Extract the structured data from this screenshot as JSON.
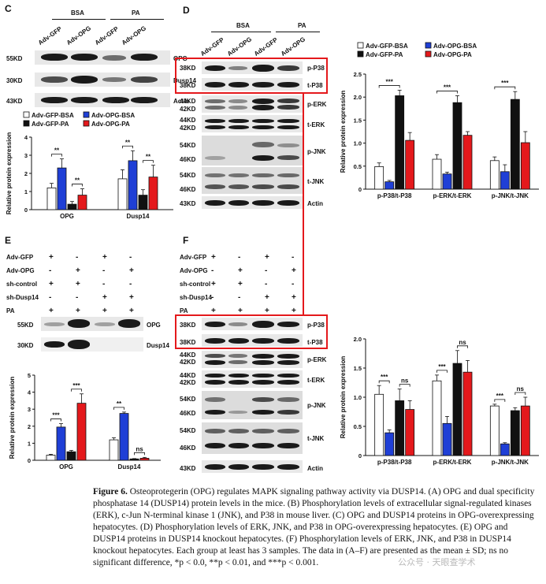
{
  "panels": {
    "C": {
      "label": "C",
      "groups": [
        "BSA",
        "PA"
      ],
      "lanes": [
        "Adv-GFP",
        "Adv-OPG",
        "Adv-GFP",
        "Adv-OPG"
      ],
      "blots": [
        {
          "kd": "55KD",
          "protein": "OPG"
        },
        {
          "kd": "30KD",
          "protein": "Dusp14"
        },
        {
          "kd": "43KD",
          "protein": "Actin"
        }
      ]
    },
    "D": {
      "label": "D",
      "groups": [
        "BSA",
        "PA"
      ],
      "lanes": [
        "Adv-GFP",
        "Adv-OPG",
        "Adv-GFP",
        "Adv-OPG"
      ],
      "blots": [
        {
          "kd": "38KD",
          "protein": "p-P38"
        },
        {
          "kd": "38KD",
          "protein": "t-P38"
        },
        {
          "kd": "44KD",
          "kd2": "42KD",
          "protein": "p-ERK"
        },
        {
          "kd": "44KD",
          "kd2": "42KD",
          "protein": "t-ERK"
        },
        {
          "kd": "54KD",
          "kd2": "46KD",
          "protein": "p-JNK"
        },
        {
          "kd": "54KD",
          "kd2": "46KD",
          "protein": "t-JNK"
        },
        {
          "kd": "43KD",
          "protein": "Actin"
        }
      ]
    },
    "E": {
      "label": "E",
      "rows": [
        {
          "name": "Adv-GFP",
          "signs": [
            "+",
            "-",
            "+",
            "-"
          ]
        },
        {
          "name": "Adv-OPG",
          "signs": [
            "-",
            "+",
            "-",
            "+"
          ]
        },
        {
          "name": "sh-control",
          "signs": [
            "+",
            "+",
            "-",
            "-"
          ]
        },
        {
          "name": "sh-Dusp14",
          "signs": [
            "-",
            "-",
            "+",
            "+"
          ]
        },
        {
          "name": "PA",
          "signs": [
            "+",
            "+",
            "+",
            "+"
          ]
        }
      ],
      "blots": [
        {
          "kd": "55KD",
          "protein": "OPG"
        },
        {
          "kd": "30KD",
          "protein": "Dusp14"
        }
      ]
    },
    "F": {
      "label": "F",
      "rows": [
        {
          "name": "Adv-GFP",
          "signs": [
            "+",
            "-",
            "+",
            "-"
          ]
        },
        {
          "name": "Adv-OPG",
          "signs": [
            "-",
            "+",
            "-",
            "+"
          ]
        },
        {
          "name": "sh-control",
          "signs": [
            "+",
            "+",
            "-",
            "-"
          ]
        },
        {
          "name": "sh-Dusp14",
          "signs": [
            "-",
            "-",
            "+",
            "+"
          ]
        },
        {
          "name": "PA",
          "signs": [
            "+",
            "+",
            "+",
            "+"
          ]
        }
      ],
      "blots": [
        {
          "kd": "38KD",
          "protein": "p-P38"
        },
        {
          "kd": "38KD",
          "protein": "t-P38"
        },
        {
          "kd": "44KD",
          "kd2": "42KD",
          "protein": "p-ERK"
        },
        {
          "kd": "44KD",
          "kd2": "42KD",
          "protein": "t-ERK"
        },
        {
          "kd": "54KD",
          "kd2": "46KD",
          "protein": "p-JNK"
        },
        {
          "kd": "54KD",
          "kd2": "46KD",
          "protein": "t-JNK"
        },
        {
          "kd": "43KD",
          "protein": "Actin"
        }
      ]
    }
  },
  "colors": {
    "gfp_bsa": "#ffffff",
    "opg_bsa": "#1f3fd6",
    "gfp_pa": "#111111",
    "opg_pa": "#e4191c",
    "highlight": "#e4191c"
  },
  "chart_data": [
    {
      "panel": "C",
      "type": "bar",
      "ylabel": "Relative protein expression",
      "ylim": [
        0,
        4
      ],
      "yticks": [
        0,
        1,
        2,
        3,
        4
      ],
      "categories": [
        "OPG",
        "Dusp14"
      ],
      "legend": [
        "Adv-GFP-BSA",
        "Adv-OPG-BSA",
        "Adv-GFP-PA",
        "Adv-OPG-PA"
      ],
      "series": [
        {
          "name": "Adv-GFP-BSA",
          "values": [
            1.2,
            1.7
          ],
          "err": [
            0.25,
            0.5
          ]
        },
        {
          "name": "Adv-OPG-BSA",
          "values": [
            2.3,
            2.7
          ],
          "err": [
            0.5,
            0.55
          ]
        },
        {
          "name": "Adv-GFP-PA",
          "values": [
            0.3,
            0.8
          ],
          "err": [
            0.15,
            0.3
          ]
        },
        {
          "name": "Adv-OPG-PA",
          "values": [
            0.8,
            1.8
          ],
          "err": [
            0.35,
            0.65
          ]
        }
      ],
      "annotations": [
        {
          "text": "**"
        },
        {
          "text": "**"
        },
        {
          "text": "**"
        },
        {
          "text": "**"
        }
      ]
    },
    {
      "panel": "D",
      "type": "bar",
      "ylabel": "Relative protein expression",
      "ylim": [
        0,
        2.5
      ],
      "yticks": [
        0,
        0.5,
        1.0,
        1.5,
        2.0,
        2.5
      ],
      "categories": [
        "p-P38/t-P38",
        "p-ERK/t-ERK",
        "p-JNK/t-JNK"
      ],
      "legend": [
        "Adv-GFP-BSA",
        "Adv-OPG-BSA",
        "Adv-GFP-PA",
        "Adv-OPG-PA"
      ],
      "series": [
        {
          "name": "Adv-GFP-BSA",
          "values": [
            0.49,
            0.65,
            0.62
          ],
          "err": [
            0.08,
            0.1,
            0.08
          ]
        },
        {
          "name": "Adv-OPG-BSA",
          "values": [
            0.16,
            0.33,
            0.38
          ],
          "err": [
            0.03,
            0.04,
            0.15
          ]
        },
        {
          "name": "Adv-GFP-PA",
          "values": [
            2.03,
            1.88,
            1.95
          ],
          "err": [
            0.12,
            0.15,
            0.17
          ]
        },
        {
          "name": "Adv-OPG-PA",
          "values": [
            1.06,
            1.17,
            1.01
          ],
          "err": [
            0.17,
            0.08,
            0.24
          ]
        }
      ],
      "annotations": [
        {
          "text": "***"
        },
        {
          "text": "***"
        },
        {
          "text": "***"
        }
      ]
    },
    {
      "panel": "E",
      "type": "bar",
      "ylabel": "Relative protein expression",
      "ylim": [
        0,
        5
      ],
      "yticks": [
        0,
        1,
        2,
        3,
        4,
        5
      ],
      "categories": [
        "OPG",
        "Dusp14"
      ],
      "series": [
        {
          "name": "Adv-GFP+sh-control",
          "values": [
            0.3,
            1.2
          ],
          "err": [
            0.05,
            0.12
          ]
        },
        {
          "name": "Adv-OPG+sh-control",
          "values": [
            1.95,
            2.75
          ],
          "err": [
            0.2,
            0.08
          ]
        },
        {
          "name": "Adv-GFP+sh-Dusp14",
          "values": [
            0.5,
            0.08
          ],
          "err": [
            0.08,
            0.02
          ]
        },
        {
          "name": "Adv-OPG+sh-Dusp14",
          "values": [
            3.35,
            0.12
          ],
          "err": [
            0.55,
            0.05
          ]
        }
      ],
      "annotations": [
        {
          "text": "***"
        },
        {
          "text": "***"
        },
        {
          "text": "**"
        },
        {
          "text": "ns"
        }
      ]
    },
    {
      "panel": "F",
      "type": "bar",
      "ylabel": "Relative protein expression",
      "ylim": [
        0,
        2.0
      ],
      "yticks": [
        0,
        0.5,
        1.0,
        1.5,
        2.0
      ],
      "categories": [
        "p-P38/t-P38",
        "p-ERK/t-ERK",
        "p-JNK/t-JNK"
      ],
      "series": [
        {
          "name": "Adv-GFP+sh-control",
          "values": [
            1.05,
            1.28,
            0.85
          ],
          "err": [
            0.15,
            0.1,
            0.03
          ]
        },
        {
          "name": "Adv-OPG+sh-control",
          "values": [
            0.39,
            0.55,
            0.2
          ],
          "err": [
            0.05,
            0.12,
            0.02
          ]
        },
        {
          "name": "Adv-GFP+sh-Dusp14",
          "values": [
            0.94,
            1.58,
            0.77
          ],
          "err": [
            0.2,
            0.22,
            0.05
          ]
        },
        {
          "name": "Adv-OPG+sh-Dusp14",
          "values": [
            0.79,
            1.43,
            0.85
          ],
          "err": [
            0.15,
            0.2,
            0.15
          ]
        }
      ],
      "annotations": [
        {
          "text": "***"
        },
        {
          "text": "ns"
        },
        {
          "text": "***"
        },
        {
          "text": "ns"
        },
        {
          "text": "***"
        },
        {
          "text": "ns"
        }
      ]
    }
  ],
  "caption": {
    "fig": "Figure 6.",
    "text": "Osteoprotegerin (OPG) regulates MAPK signaling pathway activity via DUSP14. (A) OPG and dual specificity phosphatase 14 (DUSP14) protein levels in the mice. (B) Phosphorylation levels of extracellular signal-regulated kinases (ERK), c-Jun N-terminal kinase 1 (JNK), and P38 in mouse liver. (C) OPG and DUSP14 proteins in OPG-overexpressing hepatocytes. (D) Phosphorylation levels of ERK, JNK, and P38 in OPG-overexpressing hepatocytes. (E) OPG and DUSP14 proteins in DUSP14 knockout hepatocytes. (F) Phosphorylation levels of ERK, JNK, and P38 in DUSP14 knockout hepatocytes. Each group at least has 3 samples. The data in (A–F) are presented as the mean ± SD; ns no significant difference, *p < 0.0, **p < 0.01, and ***p < 0.001."
  },
  "watermark": "公众号 · 天眼查学术"
}
